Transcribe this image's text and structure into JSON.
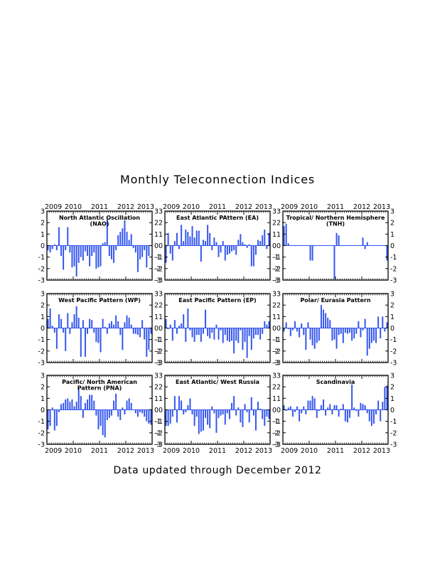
{
  "title": "Monthly Teleconnection Indices",
  "footer": "Data updated through December 2012",
  "colors": {
    "bar": "#3355ee",
    "frame": "#000000",
    "zero_line": "#3355ee"
  },
  "chart_data": [
    {
      "type": "bar",
      "title": "North Atlantic Oscillation (NAO)",
      "x": [
        "2009-01",
        "2009-02",
        "2009-03",
        "2009-04",
        "2009-05",
        "2009-06",
        "2009-07",
        "2009-08",
        "2009-09",
        "2009-10",
        "2009-11",
        "2009-12",
        "2010-01",
        "2010-02",
        "2010-03",
        "2010-04",
        "2010-05",
        "2010-06",
        "2010-07",
        "2010-08",
        "2010-09",
        "2010-10",
        "2010-11",
        "2010-12",
        "2011-01",
        "2011-02",
        "2011-03",
        "2011-04",
        "2011-05",
        "2011-06",
        "2011-07",
        "2011-08",
        "2011-09",
        "2011-10",
        "2011-11",
        "2011-12",
        "2012-01",
        "2012-02",
        "2012-03",
        "2012-04",
        "2012-05",
        "2012-06",
        "2012-07",
        "2012-08",
        "2012-09",
        "2012-10",
        "2012-11",
        "2012-12"
      ],
      "values": [
        -0.4,
        -0.6,
        -0.3,
        0.1,
        -0.4,
        1.6,
        -0.9,
        -2.1,
        -0.4,
        1.6,
        -0.6,
        -1.9,
        -1.8,
        -2.7,
        -1.5,
        -1.0,
        -1.3,
        -0.5,
        -0.9,
        -1.8,
        -0.9,
        -0.6,
        -2.0,
        -1.9,
        -1.8,
        0.2,
        0.3,
        2.3,
        -0.9,
        -1.2,
        -1.5,
        -0.4,
        0.9,
        1.2,
        1.5,
        2.2,
        1.2,
        0.5,
        1.0,
        -0.2,
        -0.6,
        -2.3,
        -1.2,
        -1.0,
        -0.4,
        -1.9,
        -0.9,
        0.0
      ],
      "xticks": [
        "2009",
        "2010",
        "2011",
        "2012",
        "2013"
      ],
      "yticks": [
        "3",
        "2",
        "1",
        "0",
        "-1",
        "-2",
        "-3"
      ],
      "ylim": [
        -3,
        3
      ]
    },
    {
      "type": "bar",
      "title": "East Atlantic PAttern (EA)",
      "x": [
        "2009-01",
        "2009-02",
        "2009-03",
        "2009-04",
        "2009-05",
        "2009-06",
        "2009-07",
        "2009-08",
        "2009-09",
        "2009-10",
        "2009-11",
        "2009-12",
        "2010-01",
        "2010-02",
        "2010-03",
        "2010-04",
        "2010-05",
        "2010-06",
        "2010-07",
        "2010-08",
        "2010-09",
        "2010-10",
        "2010-11",
        "2010-12",
        "2011-01",
        "2011-02",
        "2011-03",
        "2011-04",
        "2011-05",
        "2011-06",
        "2011-07",
        "2011-08",
        "2011-09",
        "2011-10",
        "2011-11",
        "2011-12",
        "2012-01",
        "2012-02",
        "2012-03",
        "2012-04",
        "2012-05",
        "2012-06",
        "2012-07",
        "2012-08",
        "2012-09",
        "2012-10",
        "2012-11",
        "2012-12"
      ],
      "values": [
        -1.5,
        1.1,
        -0.7,
        -1.3,
        0.4,
        1.1,
        -0.3,
        1.8,
        0.4,
        1.4,
        1.2,
        0.8,
        1.7,
        0.7,
        1.3,
        1.3,
        -1.4,
        0.5,
        0.4,
        1.8,
        1.1,
        -0.4,
        0.7,
        0.3,
        -1.0,
        -0.6,
        0.4,
        -1.3,
        -0.8,
        -0.7,
        -0.5,
        -0.4,
        -0.8,
        0.5,
        1.0,
        0.3,
        0.1,
        -0.2,
        0.1,
        -1.8,
        -1.8,
        -0.8,
        0.5,
        0.4,
        0.9,
        1.4,
        -0.3,
        1.1
      ],
      "xticks": [
        "2009",
        "2010",
        "2011",
        "2012",
        "2013"
      ],
      "yticks": [
        "3",
        "2",
        "1",
        "0",
        "-1",
        "-2",
        "-3"
      ],
      "ylim": [
        -3,
        3
      ]
    },
    {
      "type": "bar",
      "title": "Tropical/ Northern Hemisphere (TNH)",
      "x": [
        "2009-01",
        "2009-02",
        "2009-03",
        "2009-04",
        "2009-05",
        "2009-06",
        "2009-07",
        "2009-08",
        "2009-09",
        "2009-10",
        "2009-11",
        "2009-12",
        "2010-01",
        "2010-02",
        "2010-03",
        "2010-04",
        "2010-05",
        "2010-06",
        "2010-07",
        "2010-08",
        "2010-09",
        "2010-10",
        "2010-11",
        "2010-12",
        "2011-01",
        "2011-02",
        "2011-03",
        "2011-04",
        "2011-05",
        "2011-06",
        "2011-07",
        "2011-08",
        "2011-09",
        "2011-10",
        "2011-11",
        "2011-12",
        "2012-01",
        "2012-02",
        "2012-03",
        "2012-04",
        "2012-05",
        "2012-06",
        "2012-07",
        "2012-08",
        "2012-09",
        "2012-10",
        "2012-11",
        "2012-12"
      ],
      "values": [
        1.7,
        1.9,
        0.2,
        0,
        0,
        0,
        0,
        0,
        0,
        0,
        0,
        0,
        -1.3,
        -1.3,
        0,
        0,
        0,
        0,
        0,
        0,
        0,
        0,
        0,
        -2.9,
        1.1,
        0.9,
        0,
        0,
        0,
        0,
        0,
        0,
        0,
        0,
        0,
        0,
        0.7,
        -0.3,
        0.3,
        0,
        0,
        0,
        0,
        0,
        0,
        0,
        0,
        -1.3
      ],
      "xticks": [
        "2009",
        "2010",
        "2011",
        "2012",
        "2013"
      ],
      "yticks": [
        "3",
        "2",
        "1",
        "0",
        "-1",
        "-2",
        "-3"
      ],
      "ylim": [
        -3,
        3
      ]
    },
    {
      "type": "bar",
      "title": "West Pacific Pattern (WP)",
      "x": [
        "2009-01",
        "2009-02",
        "2009-03",
        "2009-04",
        "2009-05",
        "2009-06",
        "2009-07",
        "2009-08",
        "2009-09",
        "2009-10",
        "2009-11",
        "2009-12",
        "2010-01",
        "2010-02",
        "2010-03",
        "2010-04",
        "2010-05",
        "2010-06",
        "2010-07",
        "2010-08",
        "2010-09",
        "2010-10",
        "2010-11",
        "2010-12",
        "2011-01",
        "2011-02",
        "2011-03",
        "2011-04",
        "2011-05",
        "2011-06",
        "2011-07",
        "2011-08",
        "2011-09",
        "2011-10",
        "2011-11",
        "2011-12",
        "2012-01",
        "2012-02",
        "2012-03",
        "2012-04",
        "2012-05",
        "2012-06",
        "2012-07",
        "2012-08",
        "2012-09",
        "2012-10",
        "2012-11",
        "2012-12"
      ],
      "values": [
        0.8,
        1.7,
        0.2,
        -0.4,
        -1.8,
        1.2,
        0.8,
        -0.4,
        -2.0,
        1.3,
        -0.5,
        0.5,
        1.2,
        1.9,
        0.9,
        -2.5,
        0.7,
        -2.5,
        -0.5,
        0.8,
        0.7,
        -0.4,
        -1.2,
        -1.3,
        -2.1,
        0.8,
        0.1,
        -0.5,
        0.4,
        0.6,
        0.3,
        1.1,
        0.6,
        -0.6,
        -1.9,
        0.5,
        1.1,
        0.9,
        0.3,
        -0.5,
        -0.5,
        -0.6,
        -0.8,
        0.7,
        -1.0,
        -2.5,
        -1.9,
        -0.5
      ],
      "xticks": [
        "2009",
        "2010",
        "2011",
        "2012",
        "2013"
      ],
      "yticks": [
        "3",
        "2",
        "1",
        "0",
        "-1",
        "-2",
        "-3"
      ],
      "ylim": [
        -3,
        3
      ]
    },
    {
      "type": "bar",
      "title": "East Pacific Pattern (EP)",
      "x": [
        "2009-01",
        "2009-02",
        "2009-03",
        "2009-04",
        "2009-05",
        "2009-06",
        "2009-07",
        "2009-08",
        "2009-09",
        "2009-10",
        "2009-11",
        "2009-12",
        "2010-01",
        "2010-02",
        "2010-03",
        "2010-04",
        "2010-05",
        "2010-06",
        "2010-07",
        "2010-08",
        "2010-09",
        "2010-10",
        "2010-11",
        "2010-12",
        "2011-01",
        "2011-02",
        "2011-03",
        "2011-04",
        "2011-05",
        "2011-06",
        "2011-07",
        "2011-08",
        "2011-09",
        "2011-10",
        "2011-11",
        "2011-12",
        "2012-01",
        "2012-02",
        "2012-03",
        "2012-04",
        "2012-05",
        "2012-06",
        "2012-07",
        "2012-08",
        "2012-09",
        "2012-10",
        "2012-11",
        "2012-12"
      ],
      "values": [
        0.8,
        -0.1,
        0.3,
        -1.1,
        0.7,
        -0.5,
        0.2,
        0.4,
        1.2,
        -1.2,
        1.7,
        -0.2,
        -0.8,
        -1.2,
        -0.6,
        -0.6,
        -1.2,
        -0.5,
        1.6,
        -0.7,
        -0.9,
        -0.4,
        -1.0,
        0.3,
        -1.0,
        -0.2,
        -1.3,
        -0.6,
        -1.1,
        -1.2,
        -1.1,
        -2.2,
        -1.1,
        -1.3,
        -0.2,
        -1.9,
        -1.2,
        -2.6,
        -0.7,
        -1.9,
        -0.9,
        -0.6,
        -0.6,
        -1.0,
        -0.5,
        0.6,
        0.3,
        0.6
      ],
      "xticks": [
        "2009",
        "2010",
        "2011",
        "2012",
        "2013"
      ],
      "yticks": [
        "3",
        "2",
        "1",
        "0",
        "-1",
        "-2",
        "-3"
      ],
      "ylim": [
        -3,
        3
      ]
    },
    {
      "type": "bar",
      "title": "Polar/ Eurasia Pattern",
      "x": [
        "2009-01",
        "2009-02",
        "2009-03",
        "2009-04",
        "2009-05",
        "2009-06",
        "2009-07",
        "2009-08",
        "2009-09",
        "2009-10",
        "2009-11",
        "2009-12",
        "2010-01",
        "2010-02",
        "2010-03",
        "2010-04",
        "2010-05",
        "2010-06",
        "2010-07",
        "2010-08",
        "2010-09",
        "2010-10",
        "2010-11",
        "2010-12",
        "2011-01",
        "2011-02",
        "2011-03",
        "2011-04",
        "2011-05",
        "2011-06",
        "2011-07",
        "2011-08",
        "2011-09",
        "2011-10",
        "2011-11",
        "2011-12",
        "2012-01",
        "2012-02",
        "2012-03",
        "2012-04",
        "2012-05",
        "2012-06",
        "2012-07",
        "2012-08",
        "2012-09",
        "2012-10",
        "2012-11",
        "2012-12"
      ],
      "values": [
        -0.3,
        0.5,
        -0.1,
        -0.7,
        -0.2,
        0.6,
        -0.3,
        -0.8,
        0.4,
        -0.6,
        -1.9,
        0.5,
        -1.0,
        -1.5,
        -1.8,
        -1.3,
        -1.1,
        2.0,
        1.6,
        1.3,
        0.9,
        0.7,
        -1.1,
        -1.0,
        -1.8,
        -0.6,
        -0.5,
        -1.3,
        -0.4,
        -0.5,
        -0.4,
        -1.1,
        -0.9,
        -0.5,
        0.6,
        -0.8,
        -0.2,
        0.8,
        -2.4,
        -1.8,
        -1.3,
        -1.1,
        -1.3,
        1.0,
        -0.9,
        1.0,
        -0.3,
        0.5
      ],
      "xticks": [
        "2009",
        "2010",
        "2011",
        "2012",
        "2013"
      ],
      "yticks": [
        "3",
        "2",
        "1",
        "0",
        "-1",
        "-2",
        "-3"
      ],
      "ylim": [
        -3,
        3
      ]
    },
    {
      "type": "bar",
      "title": "Pacific/ North American Pattern (PNA)",
      "x": [
        "2009-01",
        "2009-02",
        "2009-03",
        "2009-04",
        "2009-05",
        "2009-06",
        "2009-07",
        "2009-08",
        "2009-09",
        "2009-10",
        "2009-11",
        "2009-12",
        "2010-01",
        "2010-02",
        "2010-03",
        "2010-04",
        "2010-05",
        "2010-06",
        "2010-07",
        "2010-08",
        "2010-09",
        "2010-10",
        "2010-11",
        "2010-12",
        "2011-01",
        "2011-02",
        "2011-03",
        "2011-04",
        "2011-05",
        "2011-06",
        "2011-07",
        "2011-08",
        "2011-09",
        "2011-10",
        "2011-11",
        "2011-12",
        "2012-01",
        "2012-02",
        "2012-03",
        "2012-04",
        "2012-05",
        "2012-06",
        "2012-07",
        "2012-08",
        "2012-09",
        "2012-10",
        "2012-11",
        "2012-12"
      ],
      "values": [
        -1.7,
        -1.4,
        0.2,
        -1.8,
        -1.4,
        -0.2,
        0.5,
        0.6,
        0.9,
        1.0,
        0.7,
        0.9,
        0.3,
        0.7,
        1.8,
        1.2,
        -0.7,
        0.6,
        0.9,
        1.3,
        1.3,
        0.8,
        -0.5,
        -1.7,
        -1.4,
        -2.2,
        -2.4,
        -0.9,
        -0.7,
        -0.5,
        0.8,
        1.4,
        -0.6,
        -0.9,
        0.2,
        -0.4,
        0.8,
        1.0,
        0.6,
        0.0,
        -0.3,
        -0.6,
        -0.2,
        -0.3,
        -0.6,
        -1.0,
        -1.2,
        -1.3
      ],
      "xticks": [
        "2009",
        "2010",
        "2011",
        "2012",
        "2013"
      ],
      "yticks": [
        "3",
        "2",
        "1",
        "0",
        "-1",
        "-2",
        "-3"
      ],
      "ylim": [
        -3,
        3
      ]
    },
    {
      "type": "bar",
      "title": "East Atlantic/ West Russia",
      "x": [
        "2009-01",
        "2009-02",
        "2009-03",
        "2009-04",
        "2009-05",
        "2009-06",
        "2009-07",
        "2009-08",
        "2009-09",
        "2009-10",
        "2009-11",
        "2009-12",
        "2010-01",
        "2010-02",
        "2010-03",
        "2010-04",
        "2010-05",
        "2010-06",
        "2010-07",
        "2010-08",
        "2010-09",
        "2010-10",
        "2010-11",
        "2010-12",
        "2011-01",
        "2011-02",
        "2011-03",
        "2011-04",
        "2011-05",
        "2011-06",
        "2011-07",
        "2011-08",
        "2011-09",
        "2011-10",
        "2011-11",
        "2011-12",
        "2012-01",
        "2012-02",
        "2012-03",
        "2012-04",
        "2012-05",
        "2012-06",
        "2012-07",
        "2012-08",
        "2012-09",
        "2012-10",
        "2012-11",
        "2012-12"
      ],
      "values": [
        -1.4,
        -1.4,
        -1.2,
        -0.6,
        1.2,
        -1.1,
        1.2,
        0.8,
        -0.4,
        -0.2,
        0.4,
        1.0,
        -0.4,
        -1.4,
        -0.6,
        -2.1,
        -1.9,
        -1.8,
        -0.7,
        -1.3,
        -1.6,
        0.3,
        -0.3,
        -2.0,
        -0.7,
        -0.5,
        -0.4,
        -1.3,
        -0.3,
        -0.8,
        0.6,
        1.2,
        -0.5,
        0.2,
        -1.1,
        -1.5,
        0.5,
        -0.2,
        -1.1,
        1.1,
        -0.5,
        -1.8,
        0.7,
        0.1,
        -0.8,
        -1.4,
        -0.6,
        -0.8
      ],
      "xticks": [
        "2009",
        "2010",
        "2011",
        "2012",
        "2013"
      ],
      "yticks": [
        "3",
        "2",
        "1",
        "0",
        "-1",
        "-2",
        "-3"
      ],
      "ylim": [
        -3,
        3
      ]
    },
    {
      "type": "bar",
      "title": "Scandinavia",
      "x": [
        "2009-01",
        "2009-02",
        "2009-03",
        "2009-04",
        "2009-05",
        "2009-06",
        "2009-07",
        "2009-08",
        "2009-09",
        "2009-10",
        "2009-11",
        "2009-12",
        "2010-01",
        "2010-02",
        "2010-03",
        "2010-04",
        "2010-05",
        "2010-06",
        "2010-07",
        "2010-08",
        "2010-09",
        "2010-10",
        "2010-11",
        "2010-12",
        "2011-01",
        "2011-02",
        "2011-03",
        "2011-04",
        "2011-05",
        "2011-06",
        "2011-07",
        "2011-08",
        "2011-09",
        "2011-10",
        "2011-11",
        "2011-12",
        "2012-01",
        "2012-02",
        "2012-03",
        "2012-04",
        "2012-05",
        "2012-06",
        "2012-07",
        "2012-08",
        "2012-09",
        "2012-10",
        "2012-11",
        "2012-12"
      ],
      "values": [
        0.4,
        -0.1,
        0.2,
        0.3,
        -0.6,
        -0.2,
        0.3,
        -1.0,
        -0.3,
        0.3,
        -0.4,
        0.8,
        0.8,
        1.2,
        1.0,
        -0.7,
        -0.1,
        0.4,
        0.9,
        -0.5,
        0.2,
        0.5,
        -0.4,
        0.4,
        0.4,
        -0.6,
        0.1,
        0.5,
        -1.0,
        -1.1,
        -0.7,
        2.2,
        0.2,
        -0.1,
        -0.6,
        0.6,
        0.5,
        0.4,
        -0.3,
        -1.0,
        -1.4,
        -1.2,
        -0.4,
        0.8,
        -1.0,
        0.7,
        2.0,
        2.1
      ],
      "xticks": [
        "2009",
        "2010",
        "2011",
        "2012",
        "2013"
      ],
      "yticks": [
        "3",
        "2",
        "1",
        "0",
        "-1",
        "-2",
        "-3"
      ],
      "ylim": [
        -3,
        3
      ]
    }
  ]
}
